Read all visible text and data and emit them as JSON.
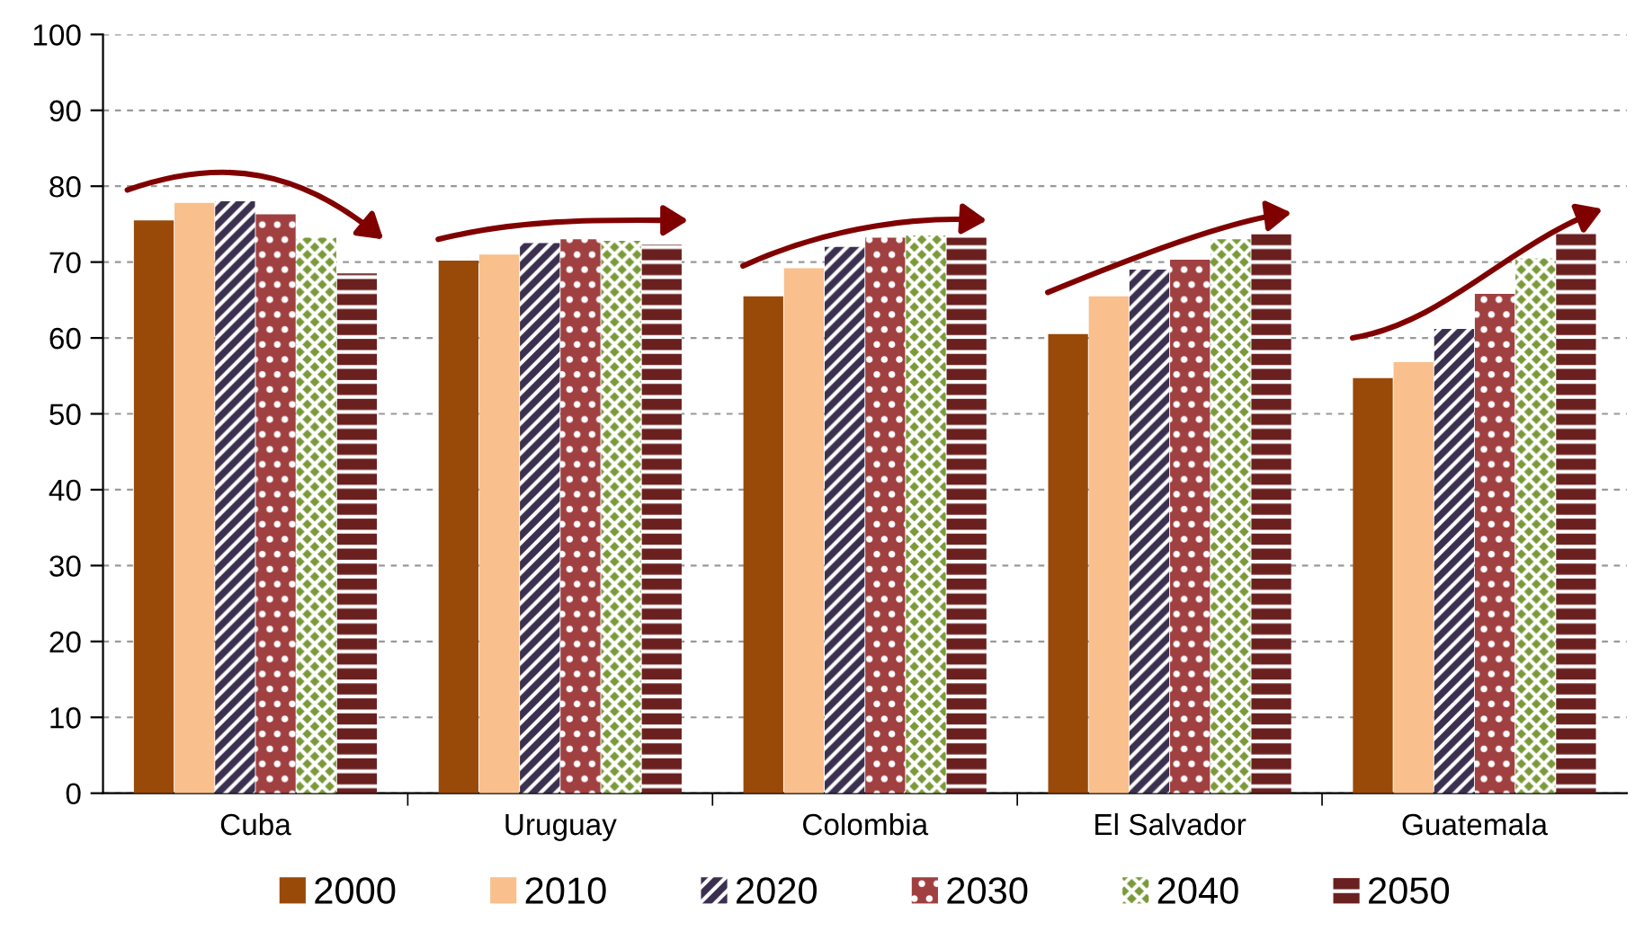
{
  "chart_data": {
    "type": "bar",
    "categories": [
      "Cuba",
      "Uruguay",
      "Colombia",
      "El Salvador",
      "Guatemala"
    ],
    "series": [
      {
        "name": "2000",
        "color": "#994a08",
        "values": [
          75.5,
          70.2,
          65.5,
          60.5,
          54.7
        ]
      },
      {
        "name": "2010",
        "color": "#f9bf8c",
        "values": [
          77.8,
          71,
          69.2,
          65.5,
          56.8
        ]
      },
      {
        "name": "2020",
        "color": "#3c3050",
        "values": [
          78,
          72.5,
          72,
          69,
          61.2
        ]
      },
      {
        "name": "2030",
        "color": "#a04040",
        "values": [
          76.3,
          73,
          73.2,
          70.3,
          65.8
        ]
      },
      {
        "name": "2040",
        "color": "#7a9a3a",
        "values": [
          73.2,
          72.8,
          73.5,
          73,
          70.5
        ]
      },
      {
        "name": "2050",
        "color": "#6b2020",
        "values": [
          68.5,
          72.3,
          73.2,
          73.7,
          74
        ]
      }
    ],
    "ylim": [
      0,
      100
    ],
    "yticks": [
      0,
      10,
      20,
      30,
      40,
      50,
      60,
      70,
      80,
      90,
      100
    ],
    "grid": "y",
    "legend": "bottom"
  }
}
